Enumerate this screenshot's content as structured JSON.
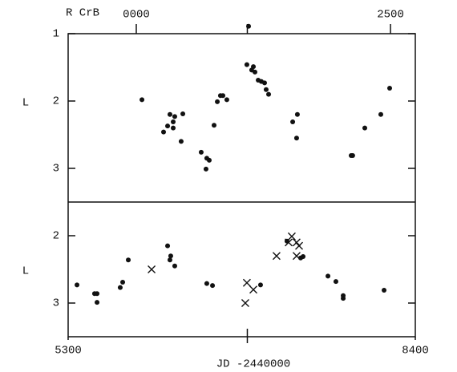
{
  "chart_data": [
    {
      "type": "scatter",
      "title": "R CrB",
      "ylabel": "L",
      "xlim": [
        5300,
        8400
      ],
      "ylim": [
        1,
        3.5
      ],
      "y_inverted": true,
      "yticks": [
        1,
        2,
        3
      ],
      "x2lim": [
        -670,
        2744
      ],
      "x2ticks": [
        {
          "value": 0,
          "label": "0000"
        },
        2500
      ],
      "minor_xticks": [
        6900
      ],
      "series": [
        {
          "marker": "dot",
          "color": "#111111",
          "x": [
            5959,
            6152,
            6188,
            6209,
            6238,
            6252,
            6238,
            6309,
            6324,
            6488,
            6531,
            6538,
            6560,
            6603,
            6632,
            6660,
            6682,
            6717,
            6911,
            6896,
            6954,
            6968,
            6939,
            6997,
            7025,
            7054,
            7068,
            7090,
            7305,
            7347,
            7340,
            7827,
            7841,
            7949,
            8092,
            8171
          ],
          "values": [
            1.98,
            2.46,
            2.37,
            2.2,
            2.31,
            2.23,
            2.4,
            2.6,
            2.19,
            2.76,
            3.01,
            2.85,
            2.88,
            2.36,
            2.01,
            1.92,
            1.92,
            1.98,
            0.89,
            1.46,
            1.49,
            1.57,
            1.54,
            1.69,
            1.71,
            1.73,
            1.83,
            1.9,
            2.31,
            2.2,
            2.55,
            2.81,
            2.81,
            2.4,
            2.2,
            1.81
          ]
        }
      ]
    },
    {
      "type": "scatter",
      "ylabel": "L",
      "xlabel": "JD -2440000",
      "xlim": [
        5300,
        8400
      ],
      "xticks": [
        5300,
        8400
      ],
      "minor_xticks": [
        6900
      ],
      "ylim": [
        1.5,
        3.5
      ],
      "y_inverted": true,
      "yticks": [
        2,
        3
      ],
      "series": [
        {
          "marker": "dot",
          "color": "#111111",
          "x": [
            5379,
            5536,
            5558,
            5558,
            5765,
            5787,
            5837,
            6188,
            6209,
            6216,
            6252,
            6538,
            6589,
            7018,
            7254,
            7376,
            7398,
            7620,
            7691,
            7756,
            7756,
            8121
          ],
          "values": [
            2.73,
            2.86,
            2.86,
            2.99,
            2.77,
            2.69,
            2.36,
            2.15,
            2.36,
            2.3,
            2.45,
            2.71,
            2.74,
            2.73,
            2.08,
            2.33,
            2.31,
            2.6,
            2.68,
            2.89,
            2.93,
            2.81
          ]
        },
        {
          "marker": "x",
          "color": "#111111",
          "x": [
            6045,
            6896,
            6954,
            6882,
            7161,
            7269,
            7297,
            7340,
            7362,
            7340
          ],
          "values": [
            2.5,
            2.7,
            2.8,
            3.0,
            2.3,
            2.1,
            2.01,
            2.1,
            2.15,
            2.3
          ]
        }
      ]
    }
  ]
}
